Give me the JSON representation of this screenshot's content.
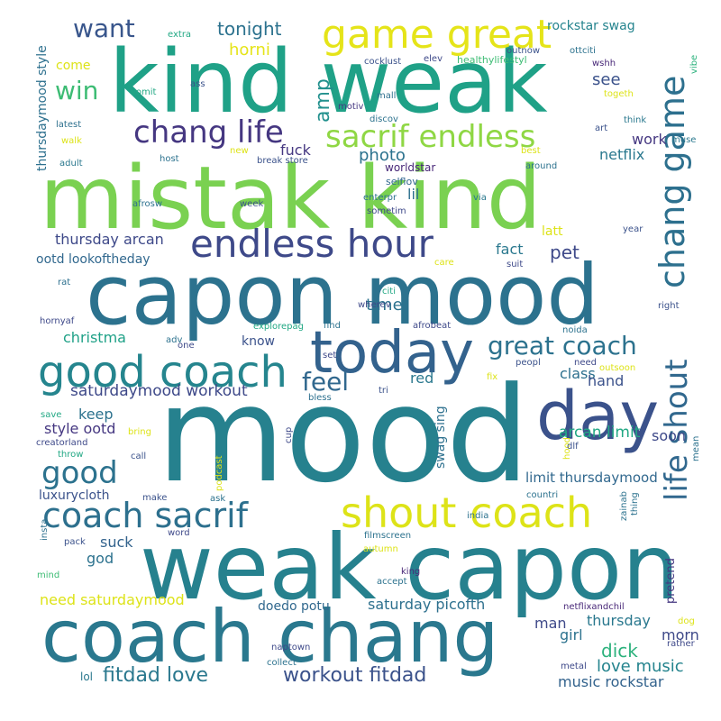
{
  "words": [
    {
      "text": "mood",
      "color": "#26818e"
    },
    {
      "text": "weak capon",
      "color": "#26818e"
    },
    {
      "text": "mistak kind",
      "color": "#7ad151"
    },
    {
      "text": "kind weak",
      "color": "#1fa187"
    },
    {
      "text": "capon mood",
      "color": "#2c728e"
    },
    {
      "text": "coach chang",
      "color": "#2a788e"
    },
    {
      "text": "today",
      "color": "#33628d"
    },
    {
      "text": "day",
      "color": "#3b528b"
    },
    {
      "text": "good coach",
      "color": "#25858e"
    },
    {
      "text": "endless hour",
      "color": "#3e4989"
    },
    {
      "text": "game great",
      "color": "#e5e419"
    },
    {
      "text": "shout coach",
      "color": "#dde318"
    },
    {
      "text": "coach sacrif",
      "color": "#2d708e"
    },
    {
      "text": "chang life",
      "color": "#453781"
    },
    {
      "text": "sacrif endless",
      "color": "#8fd744"
    },
    {
      "text": "chang game",
      "color": "#2d708e"
    },
    {
      "text": "life shout",
      "color": "#31688e"
    },
    {
      "text": "great coach",
      "color": "#2c728e"
    },
    {
      "text": "good",
      "color": "#2c728e"
    },
    {
      "text": "want",
      "color": "#39568c"
    },
    {
      "text": "win",
      "color": "#3dbc74"
    },
    {
      "text": "feel",
      "color": "#31688e"
    },
    {
      "text": "amp",
      "color": "#21908d"
    },
    {
      "text": "tonight",
      "color": "#2c728e"
    },
    {
      "text": "horni",
      "color": "#e5e419"
    },
    {
      "text": "rockstar swag",
      "color": "#25848e"
    },
    {
      "text": "see",
      "color": "#3b528b"
    },
    {
      "text": "work",
      "color": "#453781"
    },
    {
      "text": "netflix",
      "color": "#2a788e"
    },
    {
      "text": "photo",
      "color": "#2c728e"
    },
    {
      "text": "fuck",
      "color": "#453781"
    },
    {
      "text": "lil",
      "color": "#2d708e"
    },
    {
      "text": "pet",
      "color": "#3e4989"
    },
    {
      "text": "fact",
      "color": "#2a788e"
    },
    {
      "text": "latt",
      "color": "#dde318"
    },
    {
      "text": "thursday arcan",
      "color": "#3e4989"
    },
    {
      "text": "ootd lookoftheday",
      "color": "#31688e"
    },
    {
      "text": "time",
      "color": "#2c728e"
    },
    {
      "text": "christma",
      "color": "#1fa187"
    },
    {
      "text": "know",
      "color": "#3b528b"
    },
    {
      "text": "saturdaymood workout",
      "color": "#3e4989"
    },
    {
      "text": "red",
      "color": "#2a788e"
    },
    {
      "text": "class",
      "color": "#2d708e"
    },
    {
      "text": "hand",
      "color": "#3b528b"
    },
    {
      "text": "keep",
      "color": "#2c728e"
    },
    {
      "text": "style ootd",
      "color": "#453781"
    },
    {
      "text": "arcan limit",
      "color": "#22a884"
    },
    {
      "text": "soon",
      "color": "#3e4989"
    },
    {
      "text": "limit thursdaymood",
      "color": "#31688e"
    },
    {
      "text": "luxurycloth",
      "color": "#3b528b"
    },
    {
      "text": "suck",
      "color": "#33638d"
    },
    {
      "text": "god",
      "color": "#2c728e"
    },
    {
      "text": "need saturdaymood",
      "color": "#dde318"
    },
    {
      "text": "doedo potu",
      "color": "#31688e"
    },
    {
      "text": "saturday picofth",
      "color": "#2d708e"
    },
    {
      "text": "man",
      "color": "#3e4989"
    },
    {
      "text": "thursday",
      "color": "#2a788e"
    },
    {
      "text": "girl",
      "color": "#2c728e"
    },
    {
      "text": "morn",
      "color": "#3e4989"
    },
    {
      "text": "dick",
      "color": "#2db27d"
    },
    {
      "text": "love music",
      "color": "#25848e"
    },
    {
      "text": "fitdad love",
      "color": "#2a788e"
    },
    {
      "text": "workout fitdad",
      "color": "#3b528b"
    },
    {
      "text": "music rockstar",
      "color": "#33638d"
    },
    {
      "text": "lol",
      "color": "#2a788e"
    },
    {
      "text": "pretend",
      "color": "#453781"
    },
    {
      "text": "swag sing",
      "color": "#2d708e"
    },
    {
      "text": "thursdaymood style",
      "color": "#2d708e"
    },
    {
      "text": "come",
      "color": "#dde318"
    },
    {
      "text": "extra",
      "color": "#22a884"
    },
    {
      "text": "outnow",
      "color": "#3b528b"
    },
    {
      "text": "cocklust",
      "color": "#3b528b"
    },
    {
      "text": "elev",
      "color": "#3e4989"
    },
    {
      "text": "healthylifestyl",
      "color": "#3dbc74"
    },
    {
      "text": "ottciti",
      "color": "#2c728e"
    },
    {
      "text": "wshh",
      "color": "#482878"
    },
    {
      "text": "vibe",
      "color": "#2db27d"
    },
    {
      "text": "ass",
      "color": "#3b528b"
    },
    {
      "text": "vomit",
      "color": "#22a884"
    },
    {
      "text": "mall",
      "color": "#2d708e"
    },
    {
      "text": "motiv",
      "color": "#453781"
    },
    {
      "text": "discov",
      "color": "#2c728e"
    },
    {
      "text": "togeth",
      "color": "#dde318"
    },
    {
      "text": "latest",
      "color": "#2d708e"
    },
    {
      "text": "walk",
      "color": "#dde318"
    },
    {
      "text": "new",
      "color": "#dde318"
    },
    {
      "text": "host",
      "color": "#2c728e"
    },
    {
      "text": "break store",
      "color": "#3b528b"
    },
    {
      "text": "art",
      "color": "#3b528b"
    },
    {
      "text": "think",
      "color": "#2a788e"
    },
    {
      "text": "muse",
      "color": "#2a788e"
    },
    {
      "text": "adult",
      "color": "#2a788e"
    },
    {
      "text": "worldstar",
      "color": "#482878"
    },
    {
      "text": "best",
      "color": "#dde318"
    },
    {
      "text": "around",
      "color": "#2c728e"
    },
    {
      "text": "selflov",
      "color": "#31688e"
    },
    {
      "text": "afrosw",
      "color": "#2c728e"
    },
    {
      "text": "week",
      "color": "#3b528b"
    },
    {
      "text": "enterpr",
      "color": "#2c728e"
    },
    {
      "text": "via",
      "color": "#2a788e"
    },
    {
      "text": "sometim",
      "color": "#3e4989"
    },
    {
      "text": "year",
      "color": "#3b528b"
    },
    {
      "text": "care",
      "color": "#dde318"
    },
    {
      "text": "suit",
      "color": "#3e4989"
    },
    {
      "text": "rat",
      "color": "#2d708e"
    },
    {
      "text": "citi",
      "color": "#22a884"
    },
    {
      "text": "wherev",
      "color": "#3e4989"
    },
    {
      "text": "right",
      "color": "#3b528b"
    },
    {
      "text": "hornyaf",
      "color": "#3e4989"
    },
    {
      "text": "explorepag",
      "color": "#22a884"
    },
    {
      "text": "find",
      "color": "#2c728e"
    },
    {
      "text": "afrobeat",
      "color": "#3e4989"
    },
    {
      "text": "noida",
      "color": "#2c728e"
    },
    {
      "text": "adv",
      "color": "#2c728e"
    },
    {
      "text": "one",
      "color": "#3e4989"
    },
    {
      "text": "set",
      "color": "#3e4989"
    },
    {
      "text": "peopl",
      "color": "#3b528b"
    },
    {
      "text": "need",
      "color": "#3e4989"
    },
    {
      "text": "outsoon",
      "color": "#dde318"
    },
    {
      "text": "fix",
      "color": "#dde318"
    },
    {
      "text": "bless",
      "color": "#2d708e"
    },
    {
      "text": "tri",
      "color": "#3b528b"
    },
    {
      "text": "save",
      "color": "#22a884"
    },
    {
      "text": "bring",
      "color": "#dde318"
    },
    {
      "text": "creatorland",
      "color": "#3e4989"
    },
    {
      "text": "hood",
      "color": "#dde318"
    },
    {
      "text": "dlf",
      "color": "#3b528b"
    },
    {
      "text": "cup",
      "color": "#3e4989"
    },
    {
      "text": "throw",
      "color": "#22a884"
    },
    {
      "text": "call",
      "color": "#3b528b"
    },
    {
      "text": "podcast",
      "color": "#dde318"
    },
    {
      "text": "mean",
      "color": "#2c728e"
    },
    {
      "text": "countri",
      "color": "#2c728e"
    },
    {
      "text": "make",
      "color": "#3b528b"
    },
    {
      "text": "ask",
      "color": "#2c728e"
    },
    {
      "text": "zainab",
      "color": "#2c728e"
    },
    {
      "text": "thing",
      "color": "#2c728e"
    },
    {
      "text": "india",
      "color": "#2c728e"
    },
    {
      "text": "insta",
      "color": "#2d708e"
    },
    {
      "text": "word",
      "color": "#3e4989"
    },
    {
      "text": "filmscreen",
      "color": "#2c728e"
    },
    {
      "text": "pack",
      "color": "#3b528b"
    },
    {
      "text": "autumn",
      "color": "#dde318"
    },
    {
      "text": "mind",
      "color": "#3dbc74"
    },
    {
      "text": "accept",
      "color": "#2c728e"
    },
    {
      "text": "king",
      "color": "#482878"
    },
    {
      "text": "netflixandchil",
      "color": "#482878"
    },
    {
      "text": "dog",
      "color": "#dde318"
    },
    {
      "text": "rather",
      "color": "#3e4989"
    },
    {
      "text": "naptown",
      "color": "#3e4989"
    },
    {
      "text": "collect",
      "color": "#2c728e"
    },
    {
      "text": "metal",
      "color": "#3e4989"
    }
  ]
}
